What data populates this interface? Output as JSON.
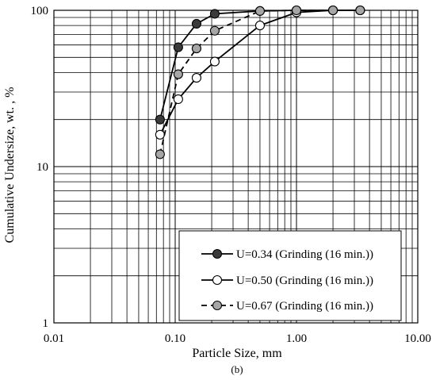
{
  "chart_data": {
    "type": "line",
    "xscale": "log",
    "yscale": "log",
    "xlim": [
      0.01,
      10
    ],
    "ylim": [
      1,
      100
    ],
    "xlabel": "Particle Size, mm",
    "ylabel": "Cumulative Undersize, wt. , %",
    "caption": "(b)",
    "grid": true,
    "x_ticks": [
      "0.01",
      "0.10",
      "1.00",
      "10.00"
    ],
    "y_ticks": [
      "1",
      "10",
      "100"
    ],
    "legend_position": "bottom-right",
    "series": [
      {
        "name": "U=0.34 (Grinding (16 min.))",
        "line": "solid",
        "marker_fill": "#3a3a3a",
        "x": [
          0.075,
          0.106,
          0.15,
          0.212,
          0.5,
          1.0,
          2.0,
          3.35
        ],
        "y": [
          20,
          58,
          82,
          95,
          99,
          100,
          100,
          100
        ]
      },
      {
        "name": "U=0.50 (Grinding (16 min.))",
        "line": "solid",
        "marker_fill": "#ffffff",
        "x": [
          0.075,
          0.106,
          0.15,
          0.212,
          0.5,
          1.0,
          2.0,
          3.35
        ],
        "y": [
          16,
          27,
          37,
          47,
          80,
          97,
          100,
          100
        ]
      },
      {
        "name": "U=0.67 (Grinding (16 min.))",
        "line": "dashed",
        "marker_fill": "#a6a6a6",
        "x": [
          0.075,
          0.106,
          0.15,
          0.212,
          0.5,
          1.0,
          2.0,
          3.35
        ],
        "y": [
          12,
          39,
          57,
          74,
          99,
          100,
          100,
          100
        ]
      }
    ]
  }
}
